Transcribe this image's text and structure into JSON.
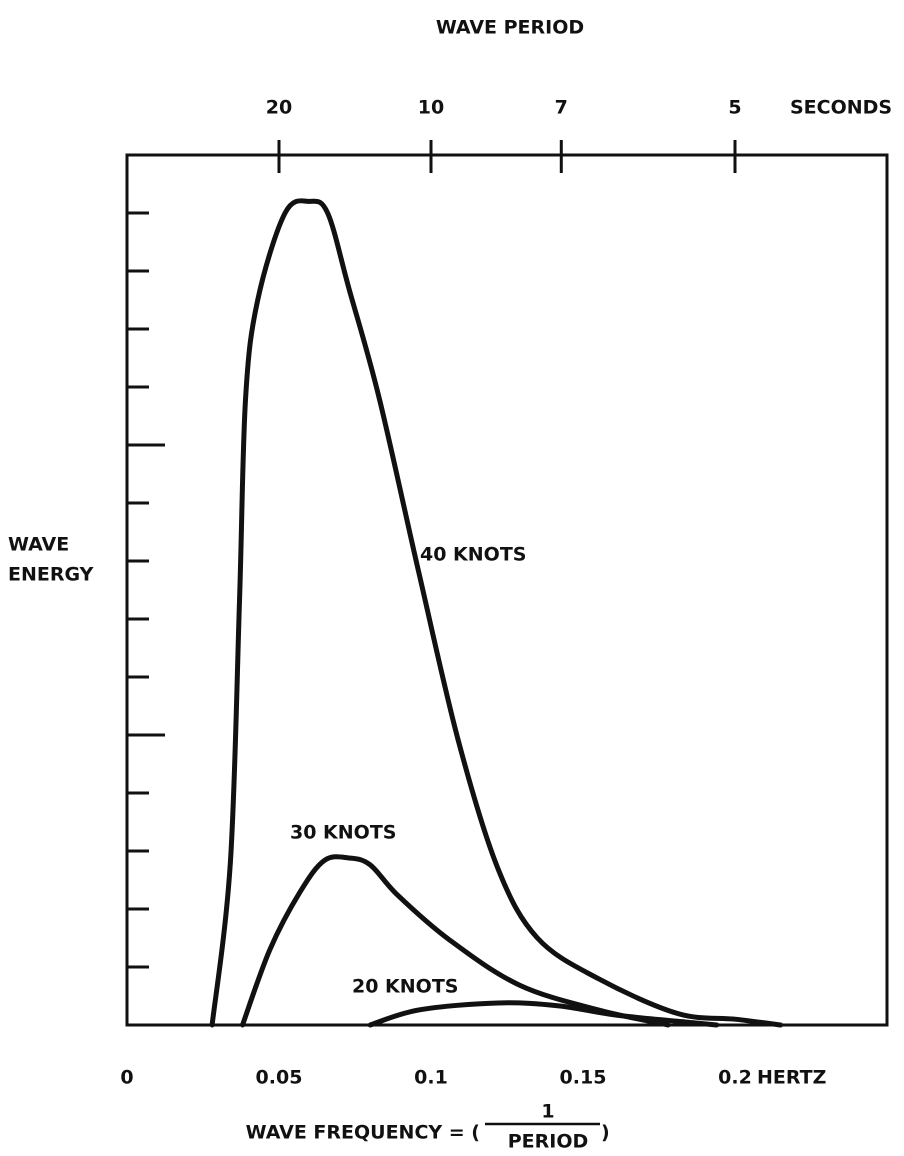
{
  "chart_data": {
    "type": "line",
    "title": "WAVE PERIOD",
    "x2label": "SECONDS",
    "x2ticks": [
      20,
      10,
      7,
      5
    ],
    "ylabel": [
      "WAVE",
      "ENERGY"
    ],
    "xlabel": {
      "left": "WAVE FREQUENCY = (",
      "numerator": "1",
      "denominator": "PERIOD",
      "right": ")"
    },
    "xunit": "HERTZ",
    "xlim": [
      0,
      0.25
    ],
    "xticks": [
      0,
      0.05,
      0.1,
      0.15,
      0.2
    ],
    "ylim": [
      0,
      15
    ],
    "yticks": [
      1,
      2,
      3,
      4,
      5,
      6,
      7,
      8,
      9,
      10,
      11,
      12,
      13,
      14
    ],
    "ymajorticks": [
      5,
      10
    ],
    "color": "#111111",
    "series": [
      {
        "name": "40 KNOTS",
        "color": "#111111",
        "x": [
          0.028,
          0.034,
          0.037,
          0.039,
          0.043,
          0.052,
          0.06,
          0.066,
          0.073,
          0.083,
          0.096,
          0.109,
          0.122,
          0.135,
          0.155,
          0.181,
          0.2,
          0.215
        ],
        "values": [
          0,
          2.8,
          7.3,
          10.8,
          12.5,
          14,
          14.2,
          14,
          12.7,
          10.8,
          7.8,
          4.9,
          2.7,
          1.5,
          0.8,
          0.2,
          0.1,
          0
        ]
      },
      {
        "name": "30 KNOTS",
        "color": "#111111",
        "x": [
          0.038,
          0.047,
          0.057,
          0.065,
          0.073,
          0.08,
          0.089,
          0.106,
          0.129,
          0.155,
          0.178
        ],
        "values": [
          0,
          1.3,
          2.3,
          2.84,
          2.88,
          2.76,
          2.24,
          1.47,
          0.69,
          0.26,
          0
        ]
      },
      {
        "name": "20 KNOTS",
        "color": "#111111",
        "x": [
          0.08,
          0.096,
          0.122,
          0.142,
          0.161,
          0.188,
          0.194
        ],
        "values": [
          0,
          0.26,
          0.38,
          0.33,
          0.17,
          0.03,
          0
        ]
      }
    ]
  }
}
